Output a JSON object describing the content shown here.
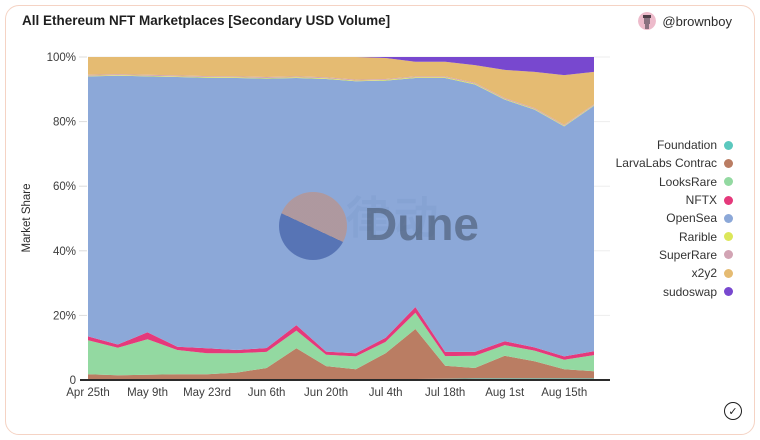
{
  "header": {
    "title": "All Ethereum NFT Marketplaces [Secondary USD Volume]",
    "user": {
      "handle": "@brownboy",
      "avatar_icon": "user-avatar-icon"
    }
  },
  "watermark": {
    "brand": "Dune",
    "cjk": "律动"
  },
  "footer": {
    "check_icon": "check-circle-icon",
    "check_glyph": "✓"
  },
  "colors": {
    "card_border": "#f5d3c4",
    "axis": "#2b2b2b",
    "grid": "#ededed",
    "tick_text": "#3d3d3d"
  },
  "chart_data": {
    "type": "area",
    "stacked": true,
    "percent": true,
    "title": "All Ethereum NFT Marketplaces [Secondary USD Volume]",
    "xlabel": "",
    "ylabel": "Market Share",
    "ylim": [
      0,
      100
    ],
    "grid": true,
    "legend_position": "right",
    "y_ticks": [
      "0",
      "20%",
      "40%",
      "60%",
      "80%",
      "100%"
    ],
    "x_tick_labels": [
      "Apr 25th",
      "May 9th",
      "May 23rd",
      "Jun 6th",
      "Jun 20th",
      "Jul 4th",
      "Jul 18th",
      "Aug 1st",
      "Aug 15th"
    ],
    "x": [
      "Apr 25",
      "May 2",
      "May 9",
      "May 16",
      "May 23",
      "May 30",
      "Jun 6",
      "Jun 13",
      "Jun 20",
      "Jun 27",
      "Jul 4",
      "Jul 11",
      "Jul 18",
      "Jul 25",
      "Aug 1",
      "Aug 8",
      "Aug 15",
      "Aug 22"
    ],
    "series": [
      {
        "name": "Foundation",
        "color": "#5BC8BE",
        "values": [
          0.3,
          0.3,
          0.3,
          0.3,
          0.3,
          0.3,
          0.3,
          0.3,
          0.3,
          0.3,
          0.3,
          0.3,
          0.4,
          0.5,
          0.5,
          0.5,
          0.5,
          0.5
        ]
      },
      {
        "name": "LarvaLabs Contrac",
        "color": "#BA7D63",
        "values": [
          1.5,
          1.2,
          1.3,
          1.5,
          1.5,
          2.0,
          3.4,
          9.5,
          4.0,
          3.0,
          8.0,
          15.5,
          4.0,
          3.2,
          7.0,
          5.3,
          2.8,
          2.2
        ]
      },
      {
        "name": "LooksRare",
        "color": "#93D9A1",
        "values": [
          10.5,
          8.5,
          11.0,
          7.5,
          6.5,
          6.0,
          5.0,
          5.5,
          3.5,
          4.0,
          3.5,
          5.0,
          3.0,
          3.8,
          3.3,
          3.3,
          3.0,
          5.0
        ]
      },
      {
        "name": "NFTX",
        "color": "#E5397B",
        "values": [
          1.2,
          1.0,
          2.2,
          1.0,
          1.5,
          1.0,
          1.2,
          1.7,
          1.0,
          1.0,
          1.3,
          1.8,
          1.3,
          1.2,
          1.2,
          1.0,
          1.0,
          1.2
        ]
      },
      {
        "name": "OpenSea",
        "color": "#8CA8D8",
        "values": [
          80.5,
          83.2,
          79.2,
          83.5,
          83.8,
          84.2,
          83.4,
          76.5,
          84.4,
          84.2,
          79.6,
          70.9,
          84.8,
          82.8,
          74.8,
          73.6,
          71.2,
          76.0
        ]
      },
      {
        "name": "Rarible",
        "color": "#DCE75A",
        "values": [
          0.2,
          0.2,
          0.2,
          0.2,
          0.2,
          0.2,
          0.2,
          0.2,
          0.2,
          0.2,
          0.2,
          0.2,
          0.2,
          0.2,
          0.2,
          0.2,
          0.2,
          0.2
        ]
      },
      {
        "name": "SuperRare",
        "color": "#D2A4B4",
        "values": [
          0.3,
          0.3,
          0.3,
          0.3,
          0.3,
          0.3,
          0.3,
          0.3,
          0.3,
          0.3,
          0.3,
          0.3,
          0.3,
          0.3,
          0.3,
          0.3,
          0.3,
          0.3
        ]
      },
      {
        "name": "x2y2",
        "color": "#E5BB72",
        "values": [
          5.5,
          5.3,
          5.5,
          5.7,
          5.9,
          6.0,
          6.2,
          6.0,
          6.3,
          7.0,
          6.5,
          4.5,
          4.5,
          5.5,
          8.7,
          11.2,
          15.4,
          10.0
        ]
      },
      {
        "name": "sudoswap",
        "color": "#7848CF",
        "values": [
          0,
          0,
          0,
          0,
          0,
          0,
          0,
          0,
          0,
          0,
          0.3,
          1.5,
          1.5,
          2.5,
          4.0,
          4.6,
          5.6,
          4.6
        ]
      }
    ]
  }
}
